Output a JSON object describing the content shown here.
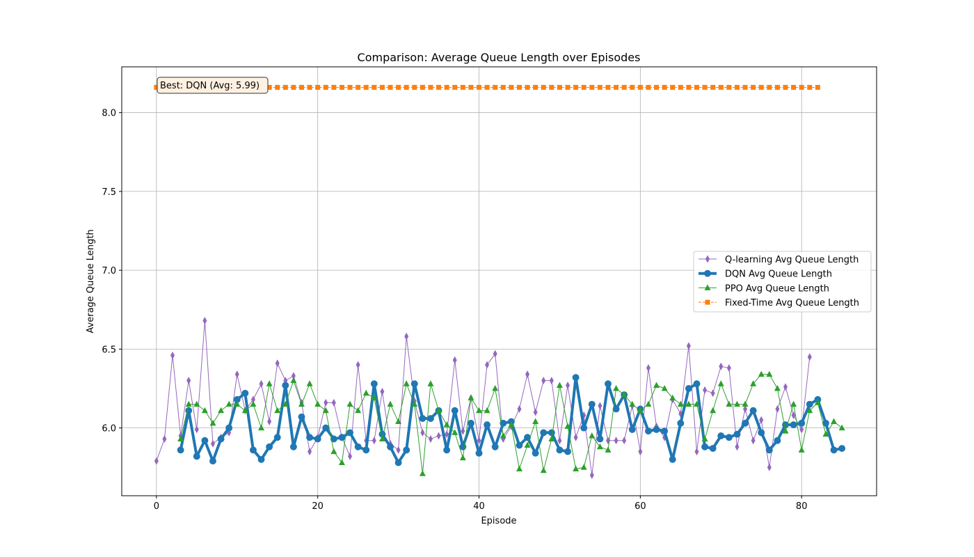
{
  "chart_data": {
    "type": "line",
    "title": "Comparison: Average Queue Length over Episodes",
    "xlabel": "Episode",
    "ylabel": "Average Queue Length",
    "xlim": [
      -4.3,
      89.3
    ],
    "ylim": [
      5.57,
      8.29
    ],
    "xticks": [
      0,
      20,
      40,
      60,
      80
    ],
    "yticks": [
      6.0,
      6.5,
      7.0,
      7.5,
      8.0
    ],
    "ytick_labels": [
      "6.0",
      "6.5",
      "7.0",
      "7.5",
      "8.0"
    ],
    "grid": true,
    "legend_position": "center-right",
    "annotation": "Best: DQN (Avg: 5.99)",
    "series": [
      {
        "name": "Q-learning Avg Queue Length",
        "color": "#9467bd",
        "marker": "diamond",
        "line_width": 1,
        "dashed": false,
        "x_start": 0,
        "values": [
          5.79,
          5.93,
          6.46,
          5.95,
          6.3,
          5.99,
          6.68,
          5.9,
          5.94,
          5.97,
          6.34,
          6.11,
          6.18,
          6.28,
          6.04,
          6.41,
          6.3,
          6.33,
          6.16,
          5.85,
          5.94,
          6.16,
          6.16,
          5.94,
          5.82,
          6.4,
          5.92,
          5.92,
          6.23,
          5.9,
          5.86,
          6.58,
          6.17,
          5.97,
          5.93,
          5.95,
          5.96,
          6.43,
          5.98,
          6.19,
          5.92,
          6.4,
          6.47,
          5.93,
          6.01,
          6.12,
          6.34,
          6.1,
          6.3,
          6.3,
          5.92,
          6.27,
          5.94,
          6.08,
          5.7,
          6.14,
          5.92,
          5.92,
          5.92,
          6.14,
          5.85,
          6.38,
          6.01,
          5.94,
          6.18,
          6.09,
          6.52,
          5.85,
          6.24,
          6.22,
          6.39,
          6.38,
          5.88,
          6.12,
          5.92,
          6.05,
          5.75,
          6.12,
          6.26,
          6.08,
          5.99,
          6.45
        ]
      },
      {
        "name": "DQN Avg Queue Length",
        "color": "#1f77b4",
        "marker": "circle",
        "line_width": 4,
        "dashed": false,
        "x_start": 3,
        "values": [
          5.86,
          6.11,
          5.82,
          5.92,
          5.79,
          5.93,
          6.0,
          6.18,
          6.22,
          5.86,
          5.8,
          5.88,
          5.94,
          6.27,
          5.88,
          6.07,
          5.94,
          5.93,
          6.0,
          5.93,
          5.94,
          5.97,
          5.88,
          5.86,
          6.28,
          5.96,
          5.88,
          5.78,
          5.86,
          6.28,
          6.06,
          6.06,
          6.11,
          5.86,
          6.11,
          5.88,
          6.03,
          5.84,
          6.02,
          5.88,
          6.03,
          6.04,
          5.89,
          5.94,
          5.84,
          5.97,
          5.97,
          5.86,
          5.85,
          6.32,
          6.0,
          6.15,
          5.93,
          6.28,
          6.12,
          6.21,
          5.99,
          6.12,
          5.98,
          5.99,
          5.98,
          5.8,
          6.03,
          6.25,
          6.28,
          5.88,
          5.87,
          5.95,
          5.94,
          5.96,
          6.03,
          6.11,
          5.97,
          5.86,
          5.92,
          6.02,
          6.02,
          6.03,
          6.15,
          6.18,
          6.03,
          5.86,
          5.87
        ]
      },
      {
        "name": "PPO Avg Queue Length",
        "color": "#2ca02c",
        "marker": "triangle",
        "line_width": 1,
        "dashed": false,
        "x_start": 3,
        "values": [
          5.93,
          6.15,
          6.15,
          6.11,
          6.03,
          6.11,
          6.15,
          6.15,
          6.11,
          6.15,
          6.0,
          6.28,
          6.11,
          6.15,
          6.3,
          6.15,
          6.28,
          6.15,
          6.11,
          5.85,
          5.78,
          6.15,
          6.11,
          6.22,
          6.19,
          5.93,
          6.15,
          6.04,
          6.28,
          6.15,
          5.71,
          6.28,
          6.11,
          6.02,
          5.97,
          5.81,
          6.19,
          6.11,
          6.11,
          6.25,
          5.95,
          6.02,
          5.74,
          5.89,
          6.04,
          5.73,
          5.93,
          6.27,
          6.01,
          5.74,
          5.75,
          5.95,
          5.88,
          5.86,
          6.25,
          6.21,
          6.15,
          6.11,
          6.15,
          6.27,
          6.25,
          6.19,
          6.15,
          6.15,
          6.15,
          5.93,
          6.11,
          6.28,
          6.15,
          6.15,
          6.15,
          6.28,
          6.34,
          6.34,
          6.25,
          5.98,
          6.15,
          5.86,
          6.11,
          6.16,
          5.96,
          6.04,
          6.0
        ]
      },
      {
        "name": "Fixed-Time Avg Queue Length",
        "color": "#ff7f0e",
        "marker": "square",
        "line_width": 1,
        "dashed": true,
        "x_start": 0,
        "constant": 8.16,
        "count": 83
      }
    ]
  }
}
